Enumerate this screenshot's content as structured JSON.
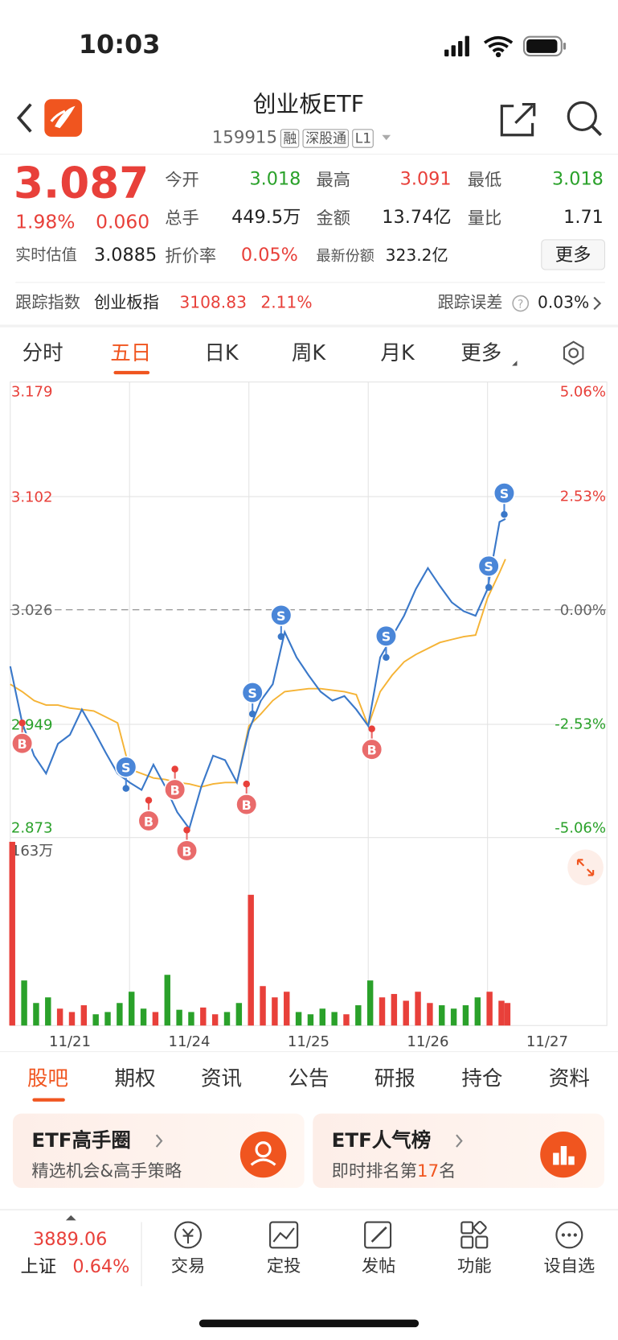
{
  "status_bar": {
    "time": "10:03"
  },
  "header": {
    "title": "创业板ETF",
    "code": "159915",
    "tags": [
      "融",
      "深股通",
      "L1"
    ]
  },
  "quote": {
    "price": "3.087",
    "change_pct": "1.98%",
    "change": "0.060",
    "fields": [
      {
        "label": "今开",
        "value": "3.018"
      },
      {
        "label": "最高",
        "value": "3.091"
      },
      {
        "label": "最低",
        "value": "3.018"
      },
      {
        "label": "总手",
        "value": "449.5万"
      },
      {
        "label": "金额",
        "value": "13.74亿"
      },
      {
        "label": "量比",
        "value": "1.71"
      }
    ],
    "estimate_label": "实时估值",
    "estimate": "3.0885",
    "discount_label": "折价率",
    "discount": "0.05%",
    "shares_label": "最新份额",
    "shares": "323.2亿",
    "more_button": "更多"
  },
  "tracking": {
    "label": "跟踪指数",
    "index": "创业板指",
    "index_value": "3108.83",
    "index_change": "2.11%",
    "error_label": "跟踪误差",
    "error": "0.03%"
  },
  "chart_tabs": [
    "分时",
    "五日",
    "日K",
    "周K",
    "月K",
    "更多"
  ],
  "chart_data": {
    "type": "line",
    "x": [
      0,
      0.1,
      0.2,
      0.3,
      0.4,
      0.5,
      0.6,
      0.7,
      0.8,
      0.9,
      1,
      1.1,
      1.2,
      1.3,
      1.4,
      1.5,
      1.6,
      1.7,
      1.8,
      1.9,
      2,
      2.1,
      2.2,
      2.3,
      2.4,
      2.5,
      2.6,
      2.7,
      2.8,
      2.9,
      3,
      3.1,
      3.2,
      3.3,
      3.4,
      3.5,
      3.6,
      3.7,
      3.8,
      3.9,
      4,
      4.1,
      4.15
    ],
    "series": [
      {
        "color": "#3a78c9",
        "values": [
          2.988,
          2.95,
          2.928,
          2.916,
          2.936,
          2.942,
          2.959,
          2.945,
          2.93,
          2.916,
          2.91,
          2.905,
          2.922,
          2.907,
          2.89,
          2.879,
          2.907,
          2.928,
          2.925,
          2.91,
          2.945,
          2.965,
          2.976,
          3.011,
          2.994,
          2.982,
          2.971,
          2.965,
          2.968,
          2.959,
          2.948,
          2.994,
          3.008,
          3.022,
          3.04,
          3.054,
          3.042,
          3.031,
          3.025,
          3.022,
          3.04,
          3.085,
          3.087
        ]
      },
      {
        "color": "#f5b335",
        "values": [
          2.976,
          2.971,
          2.965,
          2.962,
          2.962,
          2.96,
          2.959,
          2.958,
          2.954,
          2.95,
          2.919,
          2.916,
          2.913,
          2.912,
          2.91,
          2.909,
          2.907,
          2.909,
          2.91,
          2.91,
          2.948,
          2.956,
          2.965,
          2.971,
          2.972,
          2.973,
          2.973,
          2.972,
          2.971,
          2.969,
          2.948,
          2.971,
          2.982,
          2.991,
          2.996,
          3.0,
          3.004,
          3.006,
          3.008,
          3.009,
          3.034,
          3.051,
          3.06
        ]
      }
    ],
    "xlim": [
      0,
      5
    ],
    "xticks": [
      {
        "value": 0.5,
        "label": "11/21"
      },
      {
        "value": 1.5,
        "label": "11/24"
      },
      {
        "value": 2.5,
        "label": "11/25"
      },
      {
        "value": 3.5,
        "label": "11/26"
      },
      {
        "value": 4.5,
        "label": "11/27"
      }
    ],
    "ylim": [
      2.873,
      3.179
    ],
    "yticks": [
      2.873,
      2.949,
      3.026,
      3.102,
      3.179
    ],
    "y2lim": [
      -5.06,
      5.06
    ],
    "y2ticks": [
      {
        "value": -5.06,
        "label": "-5.06%"
      },
      {
        "value": -2.53,
        "label": "-2.53%"
      },
      {
        "value": 0,
        "label": "0.00%"
      },
      {
        "value": 2.53,
        "label": "2.53%"
      },
      {
        "value": 5.06,
        "label": "5.06%"
      }
    ],
    "grid": true,
    "up_color": "#e8403a",
    "down_color": "#2aa12a",
    "signals": [
      {
        "label": "B",
        "x": 0.1,
        "value": 2.95
      },
      {
        "label": "B",
        "x": 1.16,
        "value": 2.898
      },
      {
        "label": "B",
        "x": 1.38,
        "value": 2.919
      },
      {
        "label": "B",
        "x": 1.48,
        "value": 2.878
      },
      {
        "label": "B",
        "x": 1.98,
        "value": 2.909
      },
      {
        "label": "B",
        "x": 3.03,
        "value": 2.946
      },
      {
        "label": "S",
        "x": 0.97,
        "value": 2.906
      },
      {
        "label": "S",
        "x": 2.03,
        "value": 2.956
      },
      {
        "label": "S",
        "x": 2.27,
        "value": 3.008
      },
      {
        "label": "S",
        "x": 3.15,
        "value": 2.994
      },
      {
        "label": "S",
        "x": 4.01,
        "value": 3.041
      },
      {
        "label": "S",
        "x": 4.14,
        "value": 3.09
      }
    ],
    "volume": {
      "values": [
        163,
        40,
        20,
        25,
        15,
        12,
        18,
        10,
        12,
        20,
        30,
        15,
        12,
        45,
        14,
        12,
        16,
        10,
        12,
        20,
        116,
        35,
        25,
        30,
        12,
        10,
        15,
        12,
        10,
        18,
        40,
        25,
        28,
        22,
        30,
        20,
        18,
        15,
        18,
        25,
        30,
        22,
        20
      ],
      "ylim": [
        0,
        163
      ],
      "yticks": [
        {
          "value": 163,
          "label": "163万"
        }
      ]
    }
  },
  "content_tabs": [
    "股吧",
    "期权",
    "资讯",
    "公告",
    "研报",
    "持仓",
    "资料"
  ],
  "cards": [
    {
      "title": "ETF高手圈",
      "subtitle": "精选机会&高手策略"
    },
    {
      "title": "ETF人气榜",
      "subtitle_parts": [
        "即时排名第",
        "17",
        "名"
      ]
    }
  ],
  "bottom_bar": {
    "index_value": "3889.06",
    "index_name": "上证",
    "index_change": "0.64%",
    "actions": [
      "交易",
      "定投",
      "发帖",
      "功能",
      "设自选"
    ]
  }
}
